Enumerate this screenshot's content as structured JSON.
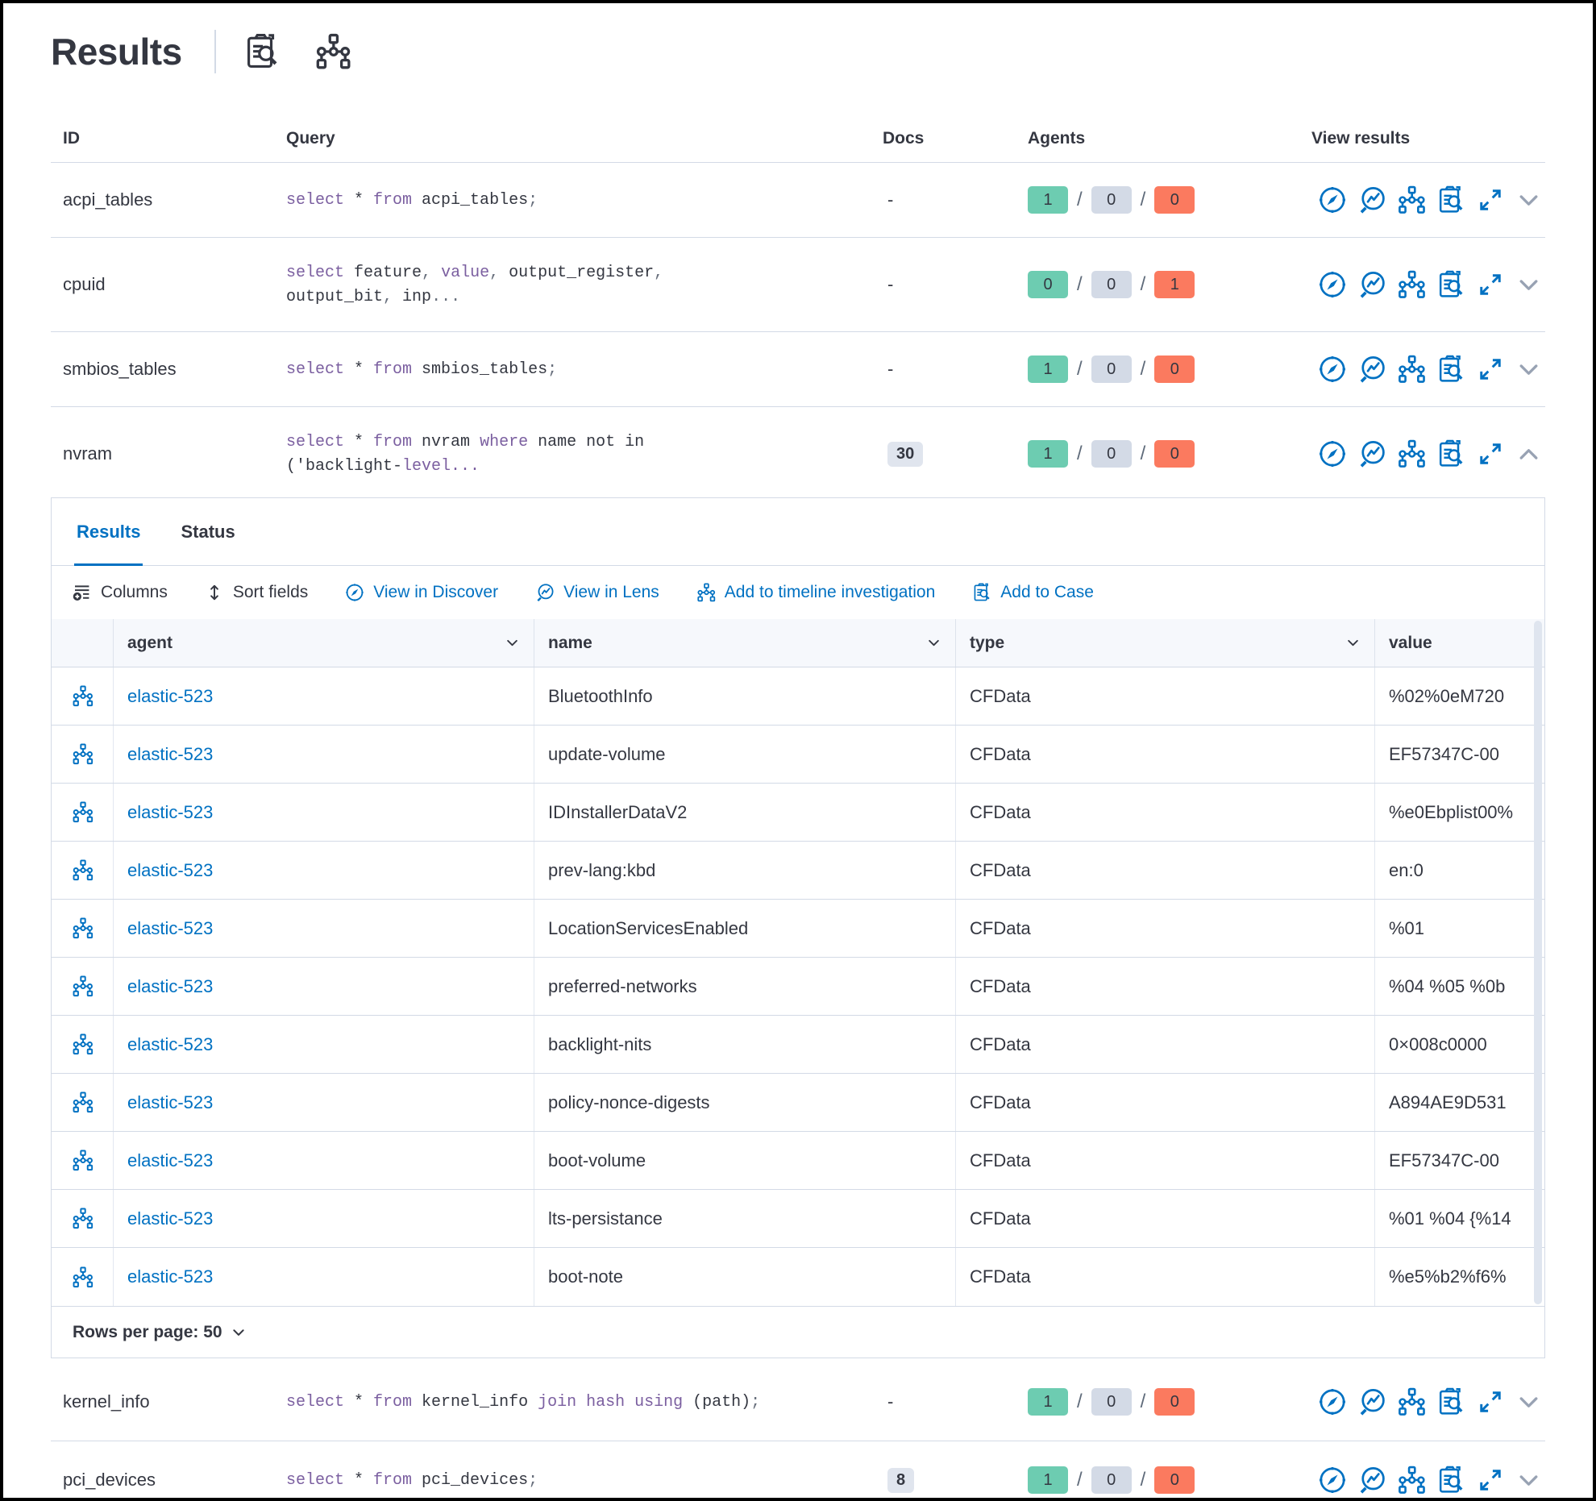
{
  "page": {
    "title": "Results"
  },
  "colors": {
    "accent_blue": "#0071C2",
    "text": "#343741",
    "success_badge": "#6DCCB1",
    "neutral_badge": "#D3DAE6",
    "danger_badge": "#FB7A5F",
    "sql_keyword": "#7B5FA0",
    "border": "#D3DAE6"
  },
  "header_icons": [
    {
      "name": "inspect-query-icon",
      "icon": "caseSearch"
    },
    {
      "name": "timeline-icon",
      "icon": "timeline"
    }
  ],
  "query_table": {
    "columns": [
      "ID",
      "Query",
      "Docs",
      "Agents",
      "View results"
    ],
    "rows": [
      {
        "id": "acpi_tables",
        "docs": "-",
        "docs_badge": false,
        "query_tokens": [
          [
            "k",
            "select"
          ],
          [
            "t",
            " * "
          ],
          [
            "k",
            "from"
          ],
          [
            "t",
            " acpi_tables"
          ],
          [
            "p",
            ";"
          ]
        ],
        "agents": {
          "success": "1",
          "pending": "0",
          "failed": "0"
        },
        "expanded": false
      },
      {
        "id": "cpuid",
        "docs": "-",
        "docs_badge": false,
        "query_tokens": [
          [
            "k",
            "select"
          ],
          [
            "t",
            " feature"
          ],
          [
            "p",
            ","
          ],
          [
            "t",
            " "
          ],
          [
            "k",
            "value"
          ],
          [
            "p",
            ","
          ],
          [
            "t",
            " output_register"
          ],
          [
            "p",
            ","
          ],
          [
            "br",
            ""
          ],
          [
            "t",
            "output_bit"
          ],
          [
            "p",
            ","
          ],
          [
            "t",
            " inp"
          ],
          [
            "p",
            "..."
          ]
        ],
        "agents": {
          "success": "0",
          "pending": "0",
          "failed": "1"
        },
        "expanded": false
      },
      {
        "id": "smbios_tables",
        "docs": "-",
        "docs_badge": false,
        "query_tokens": [
          [
            "k",
            "select"
          ],
          [
            "t",
            " * "
          ],
          [
            "k",
            "from"
          ],
          [
            "t",
            " smbios_tables"
          ],
          [
            "p",
            ";"
          ]
        ],
        "agents": {
          "success": "1",
          "pending": "0",
          "failed": "0"
        },
        "expanded": false
      },
      {
        "id": "nvram",
        "docs": "30",
        "docs_badge": true,
        "query_tokens": [
          [
            "k",
            "select"
          ],
          [
            "t",
            " * "
          ],
          [
            "k",
            "from"
          ],
          [
            "t",
            " nvram "
          ],
          [
            "k",
            "where"
          ],
          [
            "t",
            " name not in"
          ],
          [
            "br",
            ""
          ],
          [
            "t",
            "('backlight-"
          ],
          [
            "k",
            "level..."
          ]
        ],
        "agents": {
          "success": "1",
          "pending": "0",
          "failed": "0"
        },
        "expanded": true
      },
      {
        "id": "kernel_info",
        "docs": "-",
        "docs_badge": false,
        "query_tokens": [
          [
            "k",
            "select"
          ],
          [
            "t",
            " * "
          ],
          [
            "k",
            "from"
          ],
          [
            "t",
            " kernel_info "
          ],
          [
            "k",
            "join"
          ],
          [
            "t",
            " "
          ],
          [
            "k",
            "hash"
          ],
          [
            "t",
            " "
          ],
          [
            "k",
            "using"
          ],
          [
            "t",
            " (path)"
          ],
          [
            "p",
            ";"
          ]
        ],
        "agents": {
          "success": "1",
          "pending": "0",
          "failed": "0"
        },
        "expanded": false
      },
      {
        "id": "pci_devices",
        "docs": "8",
        "docs_badge": true,
        "query_tokens": [
          [
            "k",
            "select"
          ],
          [
            "t",
            " * "
          ],
          [
            "k",
            "from"
          ],
          [
            "t",
            " pci_devices"
          ],
          [
            "p",
            ";"
          ]
        ],
        "agents": {
          "success": "1",
          "pending": "0",
          "failed": "0"
        },
        "expanded": false
      }
    ]
  },
  "view_results_icons": [
    {
      "name": "view-in-discover-icon",
      "icon": "compass"
    },
    {
      "name": "view-in-lens-icon",
      "icon": "lens"
    },
    {
      "name": "add-to-timeline-icon",
      "icon": "timeline"
    },
    {
      "name": "add-to-case-icon",
      "icon": "caseSearch"
    },
    {
      "name": "expand-results-icon",
      "icon": "expand"
    }
  ],
  "panel": {
    "tabs": [
      {
        "label": "Results"
      },
      {
        "label": "Status"
      }
    ],
    "toolbar": [
      {
        "label": "Columns"
      },
      {
        "label": "Sort fields"
      },
      {
        "label": "View in Discover"
      },
      {
        "label": "View in Lens"
      },
      {
        "label": "Add to timeline investigation"
      },
      {
        "label": "Add to Case"
      }
    ],
    "grid": {
      "columns": [
        {
          "label": "agent"
        },
        {
          "label": "name"
        },
        {
          "label": "type"
        },
        {
          "label": "value"
        }
      ],
      "rows": [
        {
          "agent": "elastic-523",
          "name": "BluetoothInfo",
          "type": "CFData",
          "value": "%02%0eM720"
        },
        {
          "agent": "elastic-523",
          "name": "update-volume",
          "type": "CFData",
          "value": "EF57347C-00"
        },
        {
          "agent": "elastic-523",
          "name": "IDInstallerDataV2",
          "type": "CFData",
          "value": "%e0Ebplist00%"
        },
        {
          "agent": "elastic-523",
          "name": "prev-lang:kbd",
          "type": "CFData",
          "value": "en:0"
        },
        {
          "agent": "elastic-523",
          "name": "LocationServicesEnabled",
          "type": "CFData",
          "value": "%01"
        },
        {
          "agent": "elastic-523",
          "name": "preferred-networks",
          "type": "CFData",
          "value": "%04 %05 %0b"
        },
        {
          "agent": "elastic-523",
          "name": "backlight-nits",
          "type": "CFData",
          "value": "0×008c0000"
        },
        {
          "agent": "elastic-523",
          "name": "policy-nonce-digests",
          "type": "CFData",
          "value": "A894AE9D531"
        },
        {
          "agent": "elastic-523",
          "name": "boot-volume",
          "type": "CFData",
          "value": "EF57347C-00"
        },
        {
          "agent": "elastic-523",
          "name": "lts-persistance",
          "type": "CFData",
          "value": "%01 %04 {%14"
        },
        {
          "agent": "elastic-523",
          "name": "boot-note",
          "type": "CFData",
          "value": "%e5%b2%f6%"
        }
      ]
    },
    "footer": {
      "rows_per_page": "Rows per page: 50"
    }
  }
}
